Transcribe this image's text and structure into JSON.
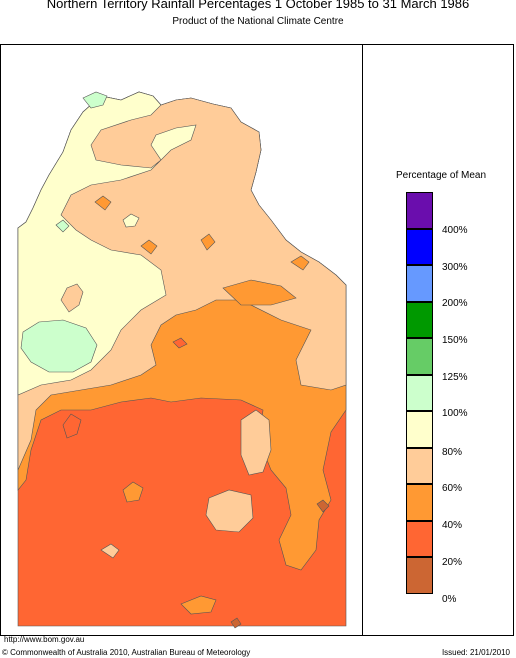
{
  "header": {
    "title": "Northern Territory Rainfall Percentages 1 October 1985 to 31 March 1986",
    "subtitle": "Product of the National Climate Centre"
  },
  "legend": {
    "title": "Percentage of Mean",
    "bands": [
      {
        "range": "> 400%",
        "color": "#6a0dad"
      },
      {
        "range": "300–400%",
        "color": "#0000ff"
      },
      {
        "range": "200–300%",
        "color": "#6699ff"
      },
      {
        "range": "150–200%",
        "color": "#009900"
      },
      {
        "range": "125–150%",
        "color": "#66cc66"
      },
      {
        "range": "100–125%",
        "color": "#ccffcc"
      },
      {
        "range": "80–100%",
        "color": "#ffffcc"
      },
      {
        "range": "60–80%",
        "color": "#ffcc99"
      },
      {
        "range": "40–60%",
        "color": "#ff9933"
      },
      {
        "range": "20–40%",
        "color": "#ff6633"
      },
      {
        "range": "0–20%",
        "color": "#cc6633"
      }
    ],
    "labels": [
      "400%",
      "300%",
      "200%",
      "150%",
      "125%",
      "100%",
      "80%",
      "60%",
      "40%",
      "20%",
      "0%"
    ]
  },
  "footer": {
    "url": "http://www.bom.gov.au",
    "copyright": "© Commonwealth of Australia 2010, Australian Bureau of Meteorology",
    "issued": "Issued: 21/01/2010"
  }
}
